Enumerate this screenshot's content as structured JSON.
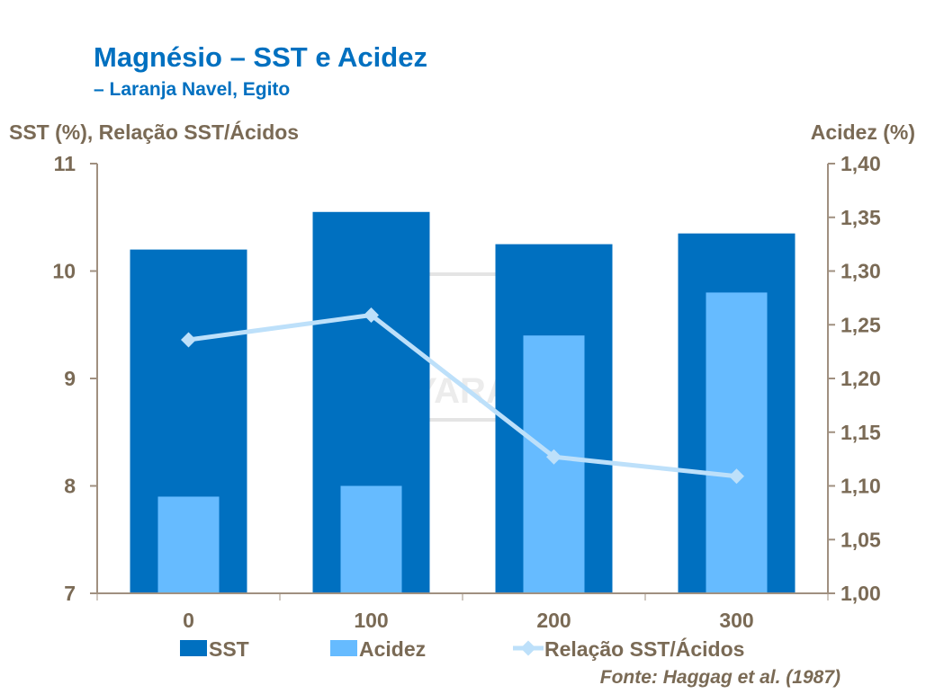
{
  "chart_data": {
    "type": "bar",
    "title": "Magnésio – SST e Acidez",
    "subtitle": "– Laranja Navel, Egito",
    "ylabel_left": "SST (%), Relação SST/Ácidos",
    "ylabel_right": "Acidez (%)",
    "categories": [
      "0",
      "100",
      "200",
      "300"
    ],
    "ylim_left": [
      7,
      11
    ],
    "yticks_left": [
      "7",
      "8",
      "9",
      "10",
      "11"
    ],
    "ylim_right": [
      1.0,
      1.4
    ],
    "yticks_right": [
      "1,00",
      "1,05",
      "1,10",
      "1,15",
      "1,20",
      "1,25",
      "1,30",
      "1,35",
      "1,40"
    ],
    "series": [
      {
        "name": "SST",
        "type": "bar",
        "axis": "left",
        "color": "#0070C0",
        "values": [
          10.2,
          10.55,
          10.25,
          10.35
        ]
      },
      {
        "name": "Acidez",
        "type": "bar",
        "axis": "right",
        "color": "#66BBFF",
        "values": [
          1.09,
          1.1,
          1.24,
          1.28
        ]
      },
      {
        "name": "Relação SST/Ácidos",
        "type": "line",
        "axis": "left",
        "color": "#BDE0FA",
        "values": [
          9.36,
          9.59,
          8.27,
          8.09
        ]
      }
    ],
    "grid": false,
    "legend": "bottom",
    "source": "Fonte: Haggag et al. (1987)",
    "watermark": "YARA"
  }
}
